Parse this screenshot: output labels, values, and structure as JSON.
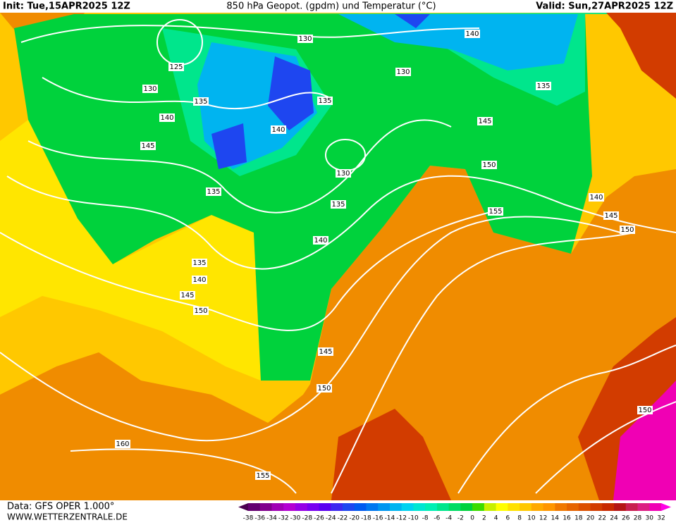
{
  "header": {
    "init": "Init: Tue,15APR2025 12Z",
    "title": "850 hPa Geopot. (gpdm) und Temperatur (°C)",
    "valid": "Valid: Sun,27APR2025 12Z"
  },
  "footer": {
    "data": "Data: GFS OPER 1.000°",
    "site": "WWW.WETTERZENTRALE.DE"
  },
  "colorbar": {
    "labels": [
      -38,
      -36,
      -34,
      -32,
      -30,
      -28,
      -26,
      -24,
      -22,
      -20,
      -18,
      -16,
      -14,
      -12,
      -10,
      -8,
      -6,
      -4,
      -2,
      0,
      2,
      4,
      6,
      8,
      10,
      12,
      14,
      16,
      18,
      20,
      22,
      24,
      26,
      28,
      30,
      32
    ],
    "colors": [
      "#4b0050",
      "#640070",
      "#80008c",
      "#a000b4",
      "#b400d2",
      "#9600e6",
      "#7800f0",
      "#5a00f0",
      "#3c28f0",
      "#1e46f0",
      "#005af0",
      "#0078f0",
      "#0096f0",
      "#00b4f0",
      "#00d2f0",
      "#00e6d2",
      "#00f0b4",
      "#00e68c",
      "#00dc64",
      "#00d23c",
      "#3cdc00",
      "#c8f000",
      "#ffff00",
      "#ffe100",
      "#ffc800",
      "#ffaa00",
      "#ff9600",
      "#f07800",
      "#e66400",
      "#dc5000",
      "#d23c00",
      "#c82800",
      "#b41414",
      "#c81e50",
      "#dc1e82",
      "#f000b4",
      "#ff00e6"
    ]
  },
  "contour_labels": [
    "130",
    "125",
    "130",
    "135",
    "140",
    "145",
    "135",
    "140",
    "135",
    "130",
    "140",
    "135",
    "145",
    "150",
    "130",
    "135",
    "155",
    "140",
    "145",
    "150",
    "140",
    "135",
    "140",
    "145",
    "150",
    "145",
    "150",
    "160",
    "155",
    "150"
  ]
}
